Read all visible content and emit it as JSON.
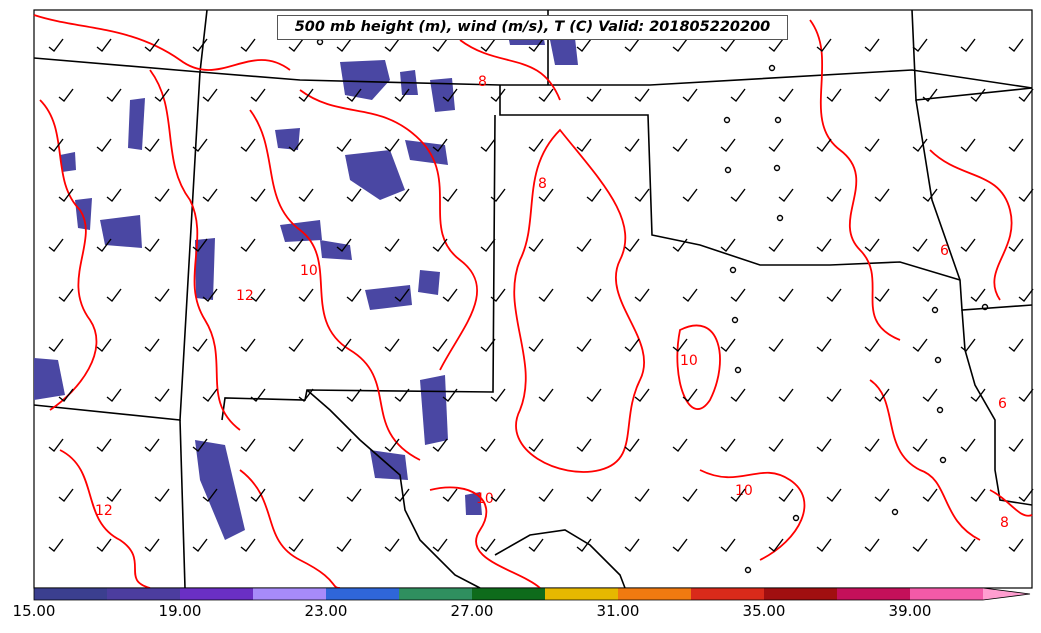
{
  "title": "500 mb height (m), wind (m/s), T (C) Valid: 201805220200",
  "colorbar": {
    "tick_labels": [
      "15.00",
      "19.00",
      "23.00",
      "27.00",
      "31.00",
      "35.00",
      "39.00"
    ],
    "colors": [
      "#3b3f8f",
      "#4c3d9f",
      "#6a2fc4",
      "#a78bfa",
      "#2f66d9",
      "#2f8f5f",
      "#0e6b1b",
      "#e6b800",
      "#f07a10",
      "#d92a1a",
      "#a10f10",
      "#c4105a",
      "#f25aa8",
      "#ff9ed0"
    ]
  },
  "contour_labels": [
    "8",
    "8",
    "10",
    "12",
    "10",
    "10",
    "6",
    "6",
    "8",
    "10",
    "12"
  ],
  "colors": {
    "contour": "#ff0000",
    "boundary": "#000000",
    "fill": "#4a47a3"
  }
}
